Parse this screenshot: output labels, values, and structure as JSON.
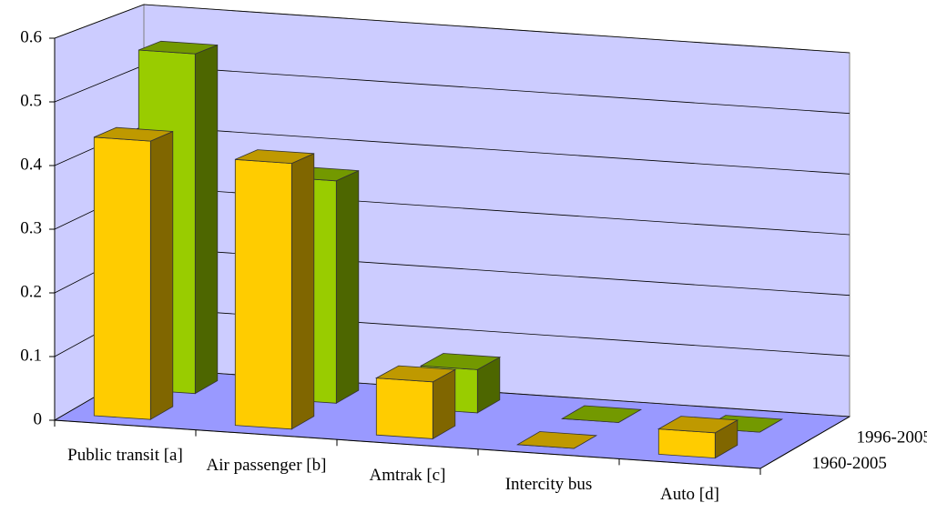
{
  "chart_data": {
    "type": "bar3d",
    "categories": [
      "Public transit [a]",
      "Air passenger [b]",
      "Amtrak [c]",
      "Intercity bus",
      "Auto [d]"
    ],
    "series": [
      {
        "name": "1960-2005",
        "color": "#ffcc00",
        "values": [
          0.44,
          0.42,
          0.09,
          0.0,
          0.04
        ]
      },
      {
        "name": "1996-2005",
        "color": "#99cc00",
        "values": [
          0.55,
          0.36,
          0.07,
          0.0,
          0.0
        ]
      }
    ],
    "ylim": [
      0,
      0.6
    ],
    "yticks": [
      0,
      0.1,
      0.2,
      0.3,
      0.4,
      0.5,
      0.6
    ],
    "grid": true
  }
}
